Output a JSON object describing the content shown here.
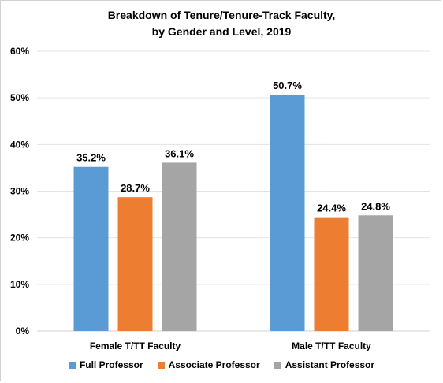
{
  "chart_data": {
    "type": "bar",
    "title_lines": [
      "Breakdown of Tenure/Tenure-Track Faculty,",
      "by Gender and Level, 2019"
    ],
    "categories": [
      "Female T/TT Faculty",
      "Male T/TT Faculty"
    ],
    "series": [
      {
        "name": "Full Professor",
        "color": "#5b9bd5",
        "values": [
          35.2,
          50.7
        ],
        "labels": [
          "35.2%",
          "50.7%"
        ]
      },
      {
        "name": "Associate Professor",
        "color": "#ed7d31",
        "values": [
          28.7,
          24.4
        ],
        "labels": [
          "28.7%",
          "24.4%"
        ]
      },
      {
        "name": "Assistant Professor",
        "color": "#a5a5a5",
        "values": [
          36.1,
          24.8
        ],
        "labels": [
          "36.1%",
          "24.8%"
        ]
      }
    ],
    "ylim": [
      0,
      60
    ],
    "yticks": [
      0,
      10,
      20,
      30,
      40,
      50,
      60
    ],
    "ytick_labels": [
      "0%",
      "10%",
      "20%",
      "30%",
      "40%",
      "50%",
      "60%"
    ],
    "grid": true,
    "legend_position": "bottom"
  }
}
